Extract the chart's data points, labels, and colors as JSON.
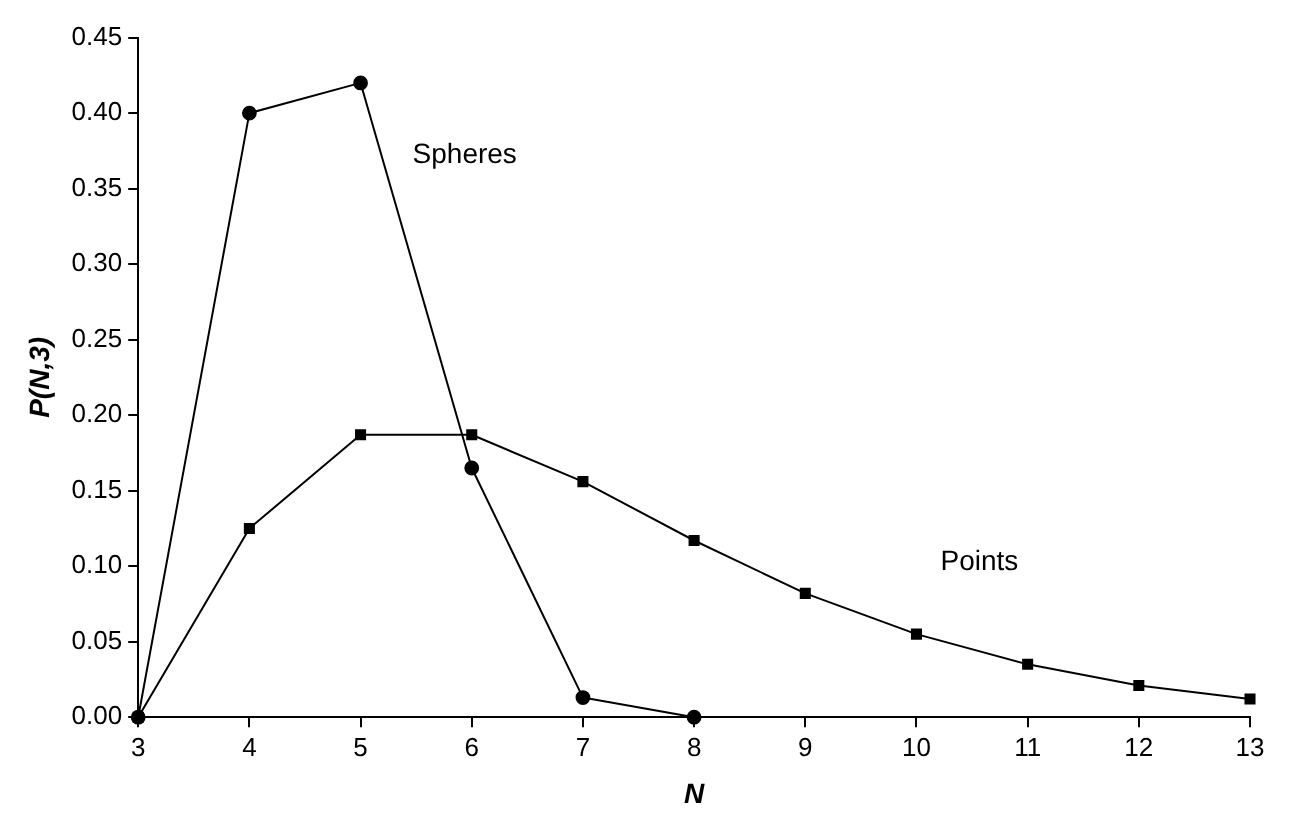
{
  "chart_data": {
    "type": "line",
    "xlabel": "N",
    "ylabel": "P(N,3)",
    "xlim": [
      3,
      13
    ],
    "xticks": [
      3,
      4,
      5,
      6,
      7,
      8,
      9,
      10,
      11,
      12,
      13
    ],
    "ylim": [
      0,
      0.45
    ],
    "yticks": [
      {
        "value": 0,
        "label": "0.00"
      },
      {
        "value": 0.05,
        "label": "0.05"
      },
      {
        "value": 0.1,
        "label": "0.10"
      },
      {
        "value": 0.15,
        "label": "0.15"
      },
      {
        "value": 0.2,
        "label": "0.20"
      },
      {
        "value": 0.25,
        "label": "0.25"
      },
      {
        "value": 0.3,
        "label": "0.30"
      },
      {
        "value": 0.35,
        "label": "0.35"
      },
      {
        "value": 0.4,
        "label": "0.40"
      },
      {
        "value": 0.45,
        "label": "0.45"
      }
    ],
    "grid": false,
    "legend": false,
    "line_style": "solid",
    "series": [
      {
        "name": "Spheres",
        "color": "#000000",
        "marker": "circle",
        "x": [
          3,
          4,
          5,
          6,
          7,
          8
        ],
        "values": [
          0,
          0.4,
          0.42,
          0.165,
          0.013,
          0
        ]
      },
      {
        "name": "Points",
        "color": "#000000",
        "marker": "square",
        "x": [
          3,
          4,
          5,
          6,
          7,
          8,
          9,
          10,
          11,
          12,
          13
        ],
        "values": [
          0,
          0.125,
          0.187,
          0.187,
          0.156,
          0.117,
          0.082,
          0.055,
          0.035,
          0.021,
          0.012
        ]
      }
    ]
  }
}
